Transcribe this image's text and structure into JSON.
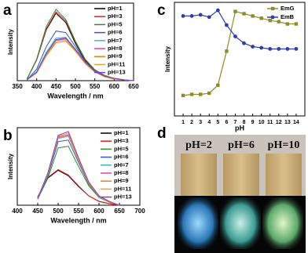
{
  "chart_data": [
    {
      "type": "line",
      "label": "a",
      "xlabel": "Wavelength / nm",
      "ylabel": "Intensity",
      "x": [
        375,
        400,
        425,
        450,
        475,
        500,
        525,
        550,
        575,
        600,
        625,
        650
      ],
      "xlim": [
        350,
        650
      ],
      "xticks": [
        350,
        400,
        450,
        500,
        550,
        600,
        650
      ],
      "ylim": [
        0,
        100
      ],
      "series": [
        {
          "name": "pH=1",
          "color": "#000000",
          "values": [
            2,
            27,
            66,
            87,
            75,
            48,
            26,
            13,
            6,
            3,
            1,
            0
          ]
        },
        {
          "name": "pH=3",
          "color": "#e0201b",
          "values": [
            2,
            27,
            67,
            89,
            77,
            50,
            27,
            14,
            6,
            3,
            1,
            0
          ]
        },
        {
          "name": "pH=5",
          "color": "#2e8b3e",
          "values": [
            2,
            28,
            70,
            92,
            79,
            51,
            28,
            14,
            7,
            3,
            1,
            0
          ]
        },
        {
          "name": "pH=6",
          "color": "#3552c8",
          "values": [
            1,
            15,
            44,
            64,
            62,
            44,
            25,
            13,
            6,
            3,
            1,
            0
          ]
        },
        {
          "name": "pH=7",
          "color": "#3fb7d9",
          "values": [
            1,
            12,
            37,
            55,
            56,
            41,
            24,
            12,
            6,
            3,
            1,
            0
          ]
        },
        {
          "name": "pH=8",
          "color": "#e23fb5",
          "values": [
            1,
            11,
            34,
            52,
            54,
            40,
            23,
            12,
            6,
            3,
            1,
            0
          ]
        },
        {
          "name": "pH=9",
          "color": "#f07d1a",
          "values": [
            1,
            10,
            32,
            49,
            51,
            38,
            22,
            11,
            5,
            2,
            1,
            0
          ]
        },
        {
          "name": "pH=11",
          "color": "#e8a23a",
          "values": [
            1,
            11,
            33,
            51,
            53,
            39,
            23,
            12,
            6,
            3,
            1,
            0
          ]
        },
        {
          "name": "pH=13",
          "color": "#7a3fc4",
          "values": [
            1,
            11,
            35,
            53,
            55,
            40,
            24,
            12,
            6,
            3,
            1,
            0
          ]
        }
      ]
    },
    {
      "type": "line",
      "label": "b",
      "xlabel": "Wavelength / nm",
      "ylabel": "Intensity",
      "x": [
        450,
        475,
        500,
        525,
        550,
        575,
        600,
        625,
        650
      ],
      "xlim": [
        400,
        700
      ],
      "xticks": [
        400,
        450,
        500,
        550,
        600,
        650,
        700
      ],
      "ylim": [
        0,
        100
      ],
      "series": [
        {
          "name": "pH=1",
          "color": "#000000",
          "values": [
            10,
            35,
            45,
            38,
            24,
            12,
            5,
            2,
            0
          ]
        },
        {
          "name": "pH=3",
          "color": "#e0201b",
          "values": [
            11,
            36,
            46,
            39,
            25,
            12,
            5,
            2,
            0
          ]
        },
        {
          "name": "pH=5",
          "color": "#2e8b3e",
          "values": [
            8,
            35,
            74,
            76,
            50,
            25,
            10,
            4,
            0
          ]
        },
        {
          "name": "pH=6",
          "color": "#3552c8",
          "values": [
            8,
            38,
            82,
            84,
            55,
            27,
            11,
            4,
            0
          ]
        },
        {
          "name": "pH=7",
          "color": "#3fb7d9",
          "values": [
            9,
            40,
            86,
            89,
            58,
            28,
            11,
            4,
            0
          ]
        },
        {
          "name": "pH=8",
          "color": "#e23fb5",
          "values": [
            9,
            41,
            88,
            91,
            59,
            29,
            12,
            4,
            0
          ]
        },
        {
          "name": "pH=9",
          "color": "#f07d1a",
          "values": [
            9,
            40,
            87,
            90,
            58,
            28,
            11,
            4,
            0
          ]
        },
        {
          "name": "pH=11",
          "color": "#e8a23a",
          "values": [
            9,
            41,
            89,
            93,
            60,
            29,
            12,
            5,
            0
          ]
        },
        {
          "name": "pH=13",
          "color": "#7a3fc4",
          "values": [
            9,
            42,
            90,
            95,
            61,
            30,
            12,
            5,
            0
          ]
        }
      ]
    },
    {
      "type": "line",
      "label": "c",
      "xlabel": "pH",
      "ylabel": "Intensity",
      "markers": true,
      "x": [
        1,
        2,
        3,
        4,
        5,
        6,
        7,
        8,
        9,
        10,
        11,
        12,
        13,
        14
      ],
      "xlim": [
        0,
        15
      ],
      "xticks": [
        1,
        2,
        3,
        4,
        5,
        6,
        7,
        8,
        9,
        10,
        11,
        12,
        13,
        14
      ],
      "ylim": [
        0,
        100
      ],
      "series": [
        {
          "name": "EmG",
          "color": "#8c8c2a",
          "marker": "square",
          "values": [
            18,
            19,
            19,
            20,
            27,
            57,
            92,
            90,
            88,
            86,
            84,
            83,
            81,
            81
          ]
        },
        {
          "name": "EmB",
          "color": "#2d3ea6",
          "marker": "circle",
          "values": [
            88,
            88,
            89,
            87,
            93,
            80,
            70,
            64,
            61,
            60,
            59,
            59,
            59,
            59
          ]
        }
      ]
    }
  ],
  "photo": {
    "label": "d",
    "labels": [
      "pH=2",
      "pH=6",
      "pH=10"
    ]
  }
}
